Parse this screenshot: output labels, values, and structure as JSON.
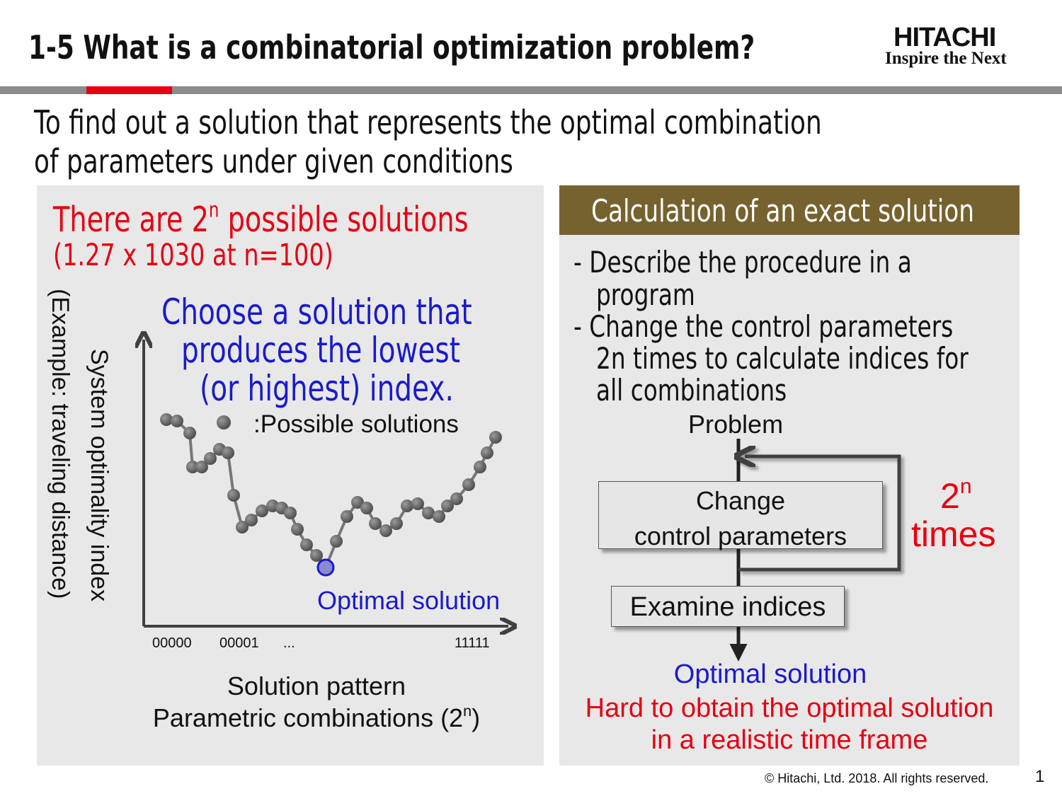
{
  "header": {
    "title": "1-5 What is a combinatorial optimization problem?",
    "logo": "HITACHI",
    "tagline": "Inspire the Next"
  },
  "subtitle": [
    "To find out a solution that represents the optimal combination",
    "of parameters under given conditions"
  ],
  "left_panel": {
    "heading": {
      "before": "There are 2",
      "sup": "n",
      "after": " possible solutions"
    },
    "note": "(1.27 x 1030 at n=100)",
    "callout": [
      "Choose a solution that",
      "produces the lowest",
      "(or highest) index."
    ],
    "legend": ":Possible solutions",
    "y_label": [
      "System optimality index",
      "(Example: traveling distance)"
    ],
    "x_ticks": [
      "00000",
      "00001",
      "...",
      "11111"
    ],
    "optimal_label": "Optimal solution",
    "x_label": {
      "line1": "Solution pattern",
      "before": "Parametric combinations (2",
      "sup": "n",
      "after": ")"
    }
  },
  "right_panel": {
    "header": "Calculation of an exact solution",
    "bullets": [
      [
        "- Describe the procedure in a",
        "program"
      ],
      [
        "- Change the control parameters",
        "2n times to calculate indices for",
        "all combinations"
      ]
    ],
    "flow": {
      "problem": "Problem",
      "change": [
        "Change",
        "control parameters"
      ],
      "examine": "Examine indices",
      "repeat": {
        "base": "2",
        "sup": "n",
        "times": "times"
      },
      "result": "Optimal solution",
      "warning": [
        "Hard to obtain the optimal solution",
        "in a realistic time frame"
      ]
    }
  },
  "footer": {
    "copyright": "© Hitachi, Ltd. 2018. All rights reserved.",
    "page": "1"
  }
}
